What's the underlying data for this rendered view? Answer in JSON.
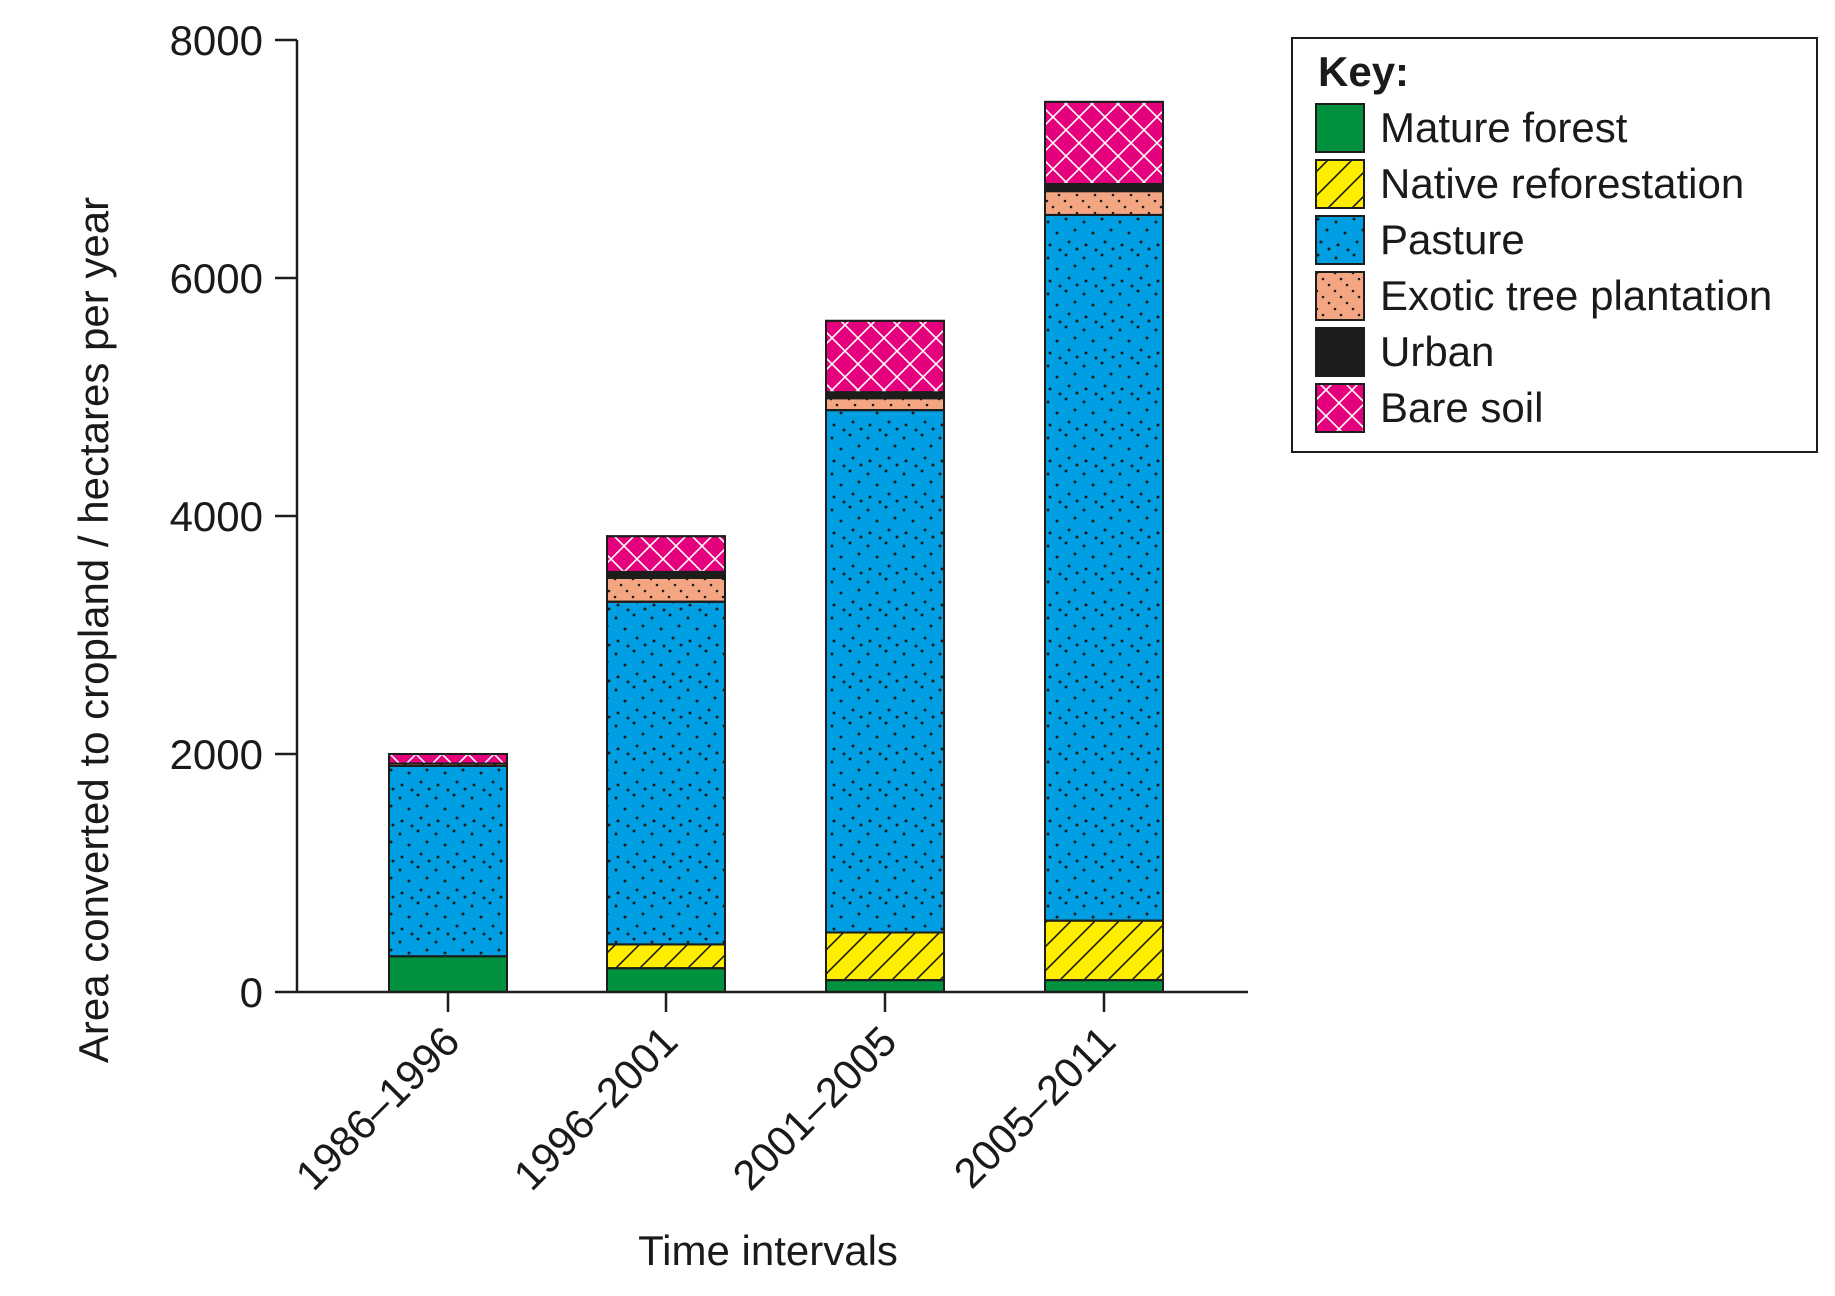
{
  "chart_data": {
    "type": "bar",
    "stacked": true,
    "title": "",
    "xlabel": "Time intervals",
    "ylabel": "Area converted to cropland / hectares per year",
    "ylim": [
      0,
      8000
    ],
    "yticks": [
      "0",
      "2000",
      "4000",
      "6000",
      "8000"
    ],
    "categories": [
      "1986–1996",
      "1996–2001",
      "2001–2005",
      "2005–2011"
    ],
    "legend_title": "Key:",
    "legend_position": "top-right",
    "series": [
      {
        "name": "Mature forest",
        "color": "#00923f",
        "pattern": "solid",
        "values": [
          300,
          200,
          100,
          100
        ]
      },
      {
        "name": "Native reforestation",
        "color": "#ffed00",
        "pattern": "hatch",
        "values": [
          0,
          200,
          400,
          500
        ]
      },
      {
        "name": "Pasture",
        "color": "#009fe3",
        "pattern": "dots",
        "values": [
          1600,
          2880,
          4390,
          5930
        ]
      },
      {
        "name": "Exotic tree plantation",
        "color": "#f4a582",
        "pattern": "diagonal-dots",
        "values": [
          20,
          200,
          100,
          200
        ]
      },
      {
        "name": "Urban",
        "color": "#1d1d1b",
        "pattern": "solid",
        "values": [
          0,
          50,
          50,
          60
        ]
      },
      {
        "name": "Bare soil",
        "color": "#e5007e",
        "pattern": "crosshatch",
        "values": [
          80,
          300,
          600,
          690
        ]
      }
    ]
  }
}
